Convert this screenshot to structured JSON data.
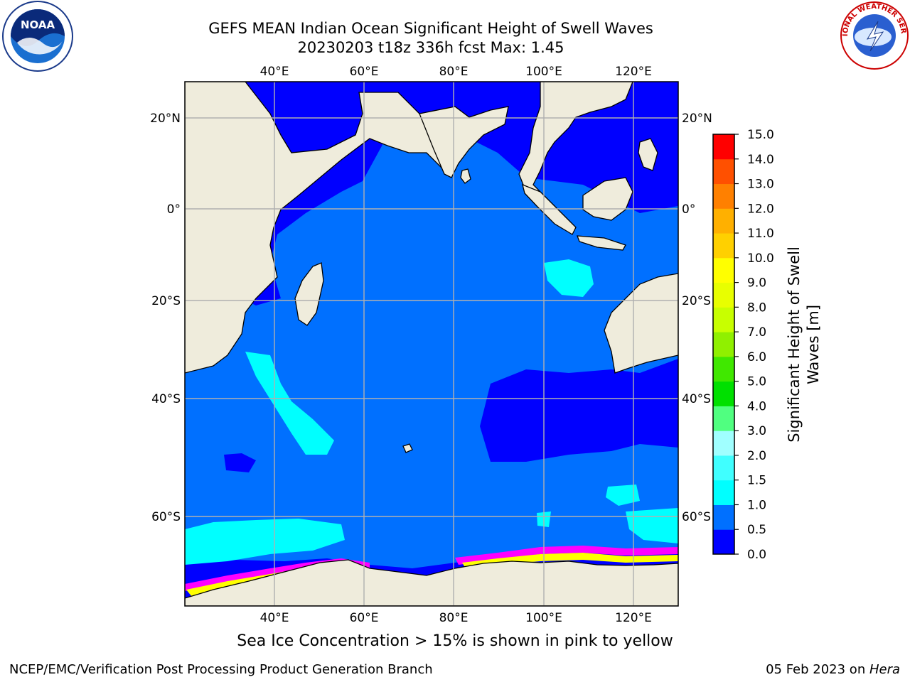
{
  "header": {
    "title_line1": "GEFS MEAN Indian Ocean Significant Height of Swell Waves",
    "title_line2": "20230203 t18z 336h fcst   Max: 1.45"
  },
  "logos": {
    "left": {
      "icon": "noaa-logo",
      "text": "NOAA"
    },
    "right": {
      "icon": "national-weather-service-logo",
      "text": "NATIONAL WEATHER SERVICE"
    }
  },
  "map": {
    "lon_labels": [
      "40°E",
      "60°E",
      "80°E",
      "100°E",
      "120°E"
    ],
    "lat_labels": [
      "20°N",
      "0°",
      "20°S",
      "40°S",
      "60°S"
    ],
    "colors": {
      "land": "#efecdc",
      "ocean_0_0_5": "#0000ff",
      "ocean_0_5_1_0": "#0070ff",
      "ocean_1_0_1_5": "#00ffff",
      "sea_ice_low": "#ff00ff",
      "sea_ice_high": "#ffff00"
    }
  },
  "colorbar": {
    "title_line1": "Significant Height of Swell",
    "title_line2": "Waves [m]",
    "ticks": [
      "0.0",
      "0.5",
      "1.0",
      "1.5",
      "2.0",
      "3.0",
      "4.0",
      "5.0",
      "6.0",
      "7.0",
      "8.0",
      "9.0",
      "10.0",
      "11.0",
      "12.0",
      "13.0",
      "14.0",
      "15.0"
    ],
    "colors": [
      "#0000ff",
      "#0070ff",
      "#00ffff",
      "#40ffff",
      "#a0ffff",
      "#50ff80",
      "#00e000",
      "#40e800",
      "#90f000",
      "#c8ff00",
      "#e8ff00",
      "#ffff00",
      "#ffd000",
      "#ffb000",
      "#ff8000",
      "#ff5000",
      "#ff0000"
    ]
  },
  "footer": {
    "note": "Sea Ice Concentration > 15% is shown in pink to yellow",
    "left": "NCEP/EMC/Verification Post Processing Product Generation Branch",
    "right_date": "05 Feb 2023 on ",
    "right_host": "Hera"
  }
}
